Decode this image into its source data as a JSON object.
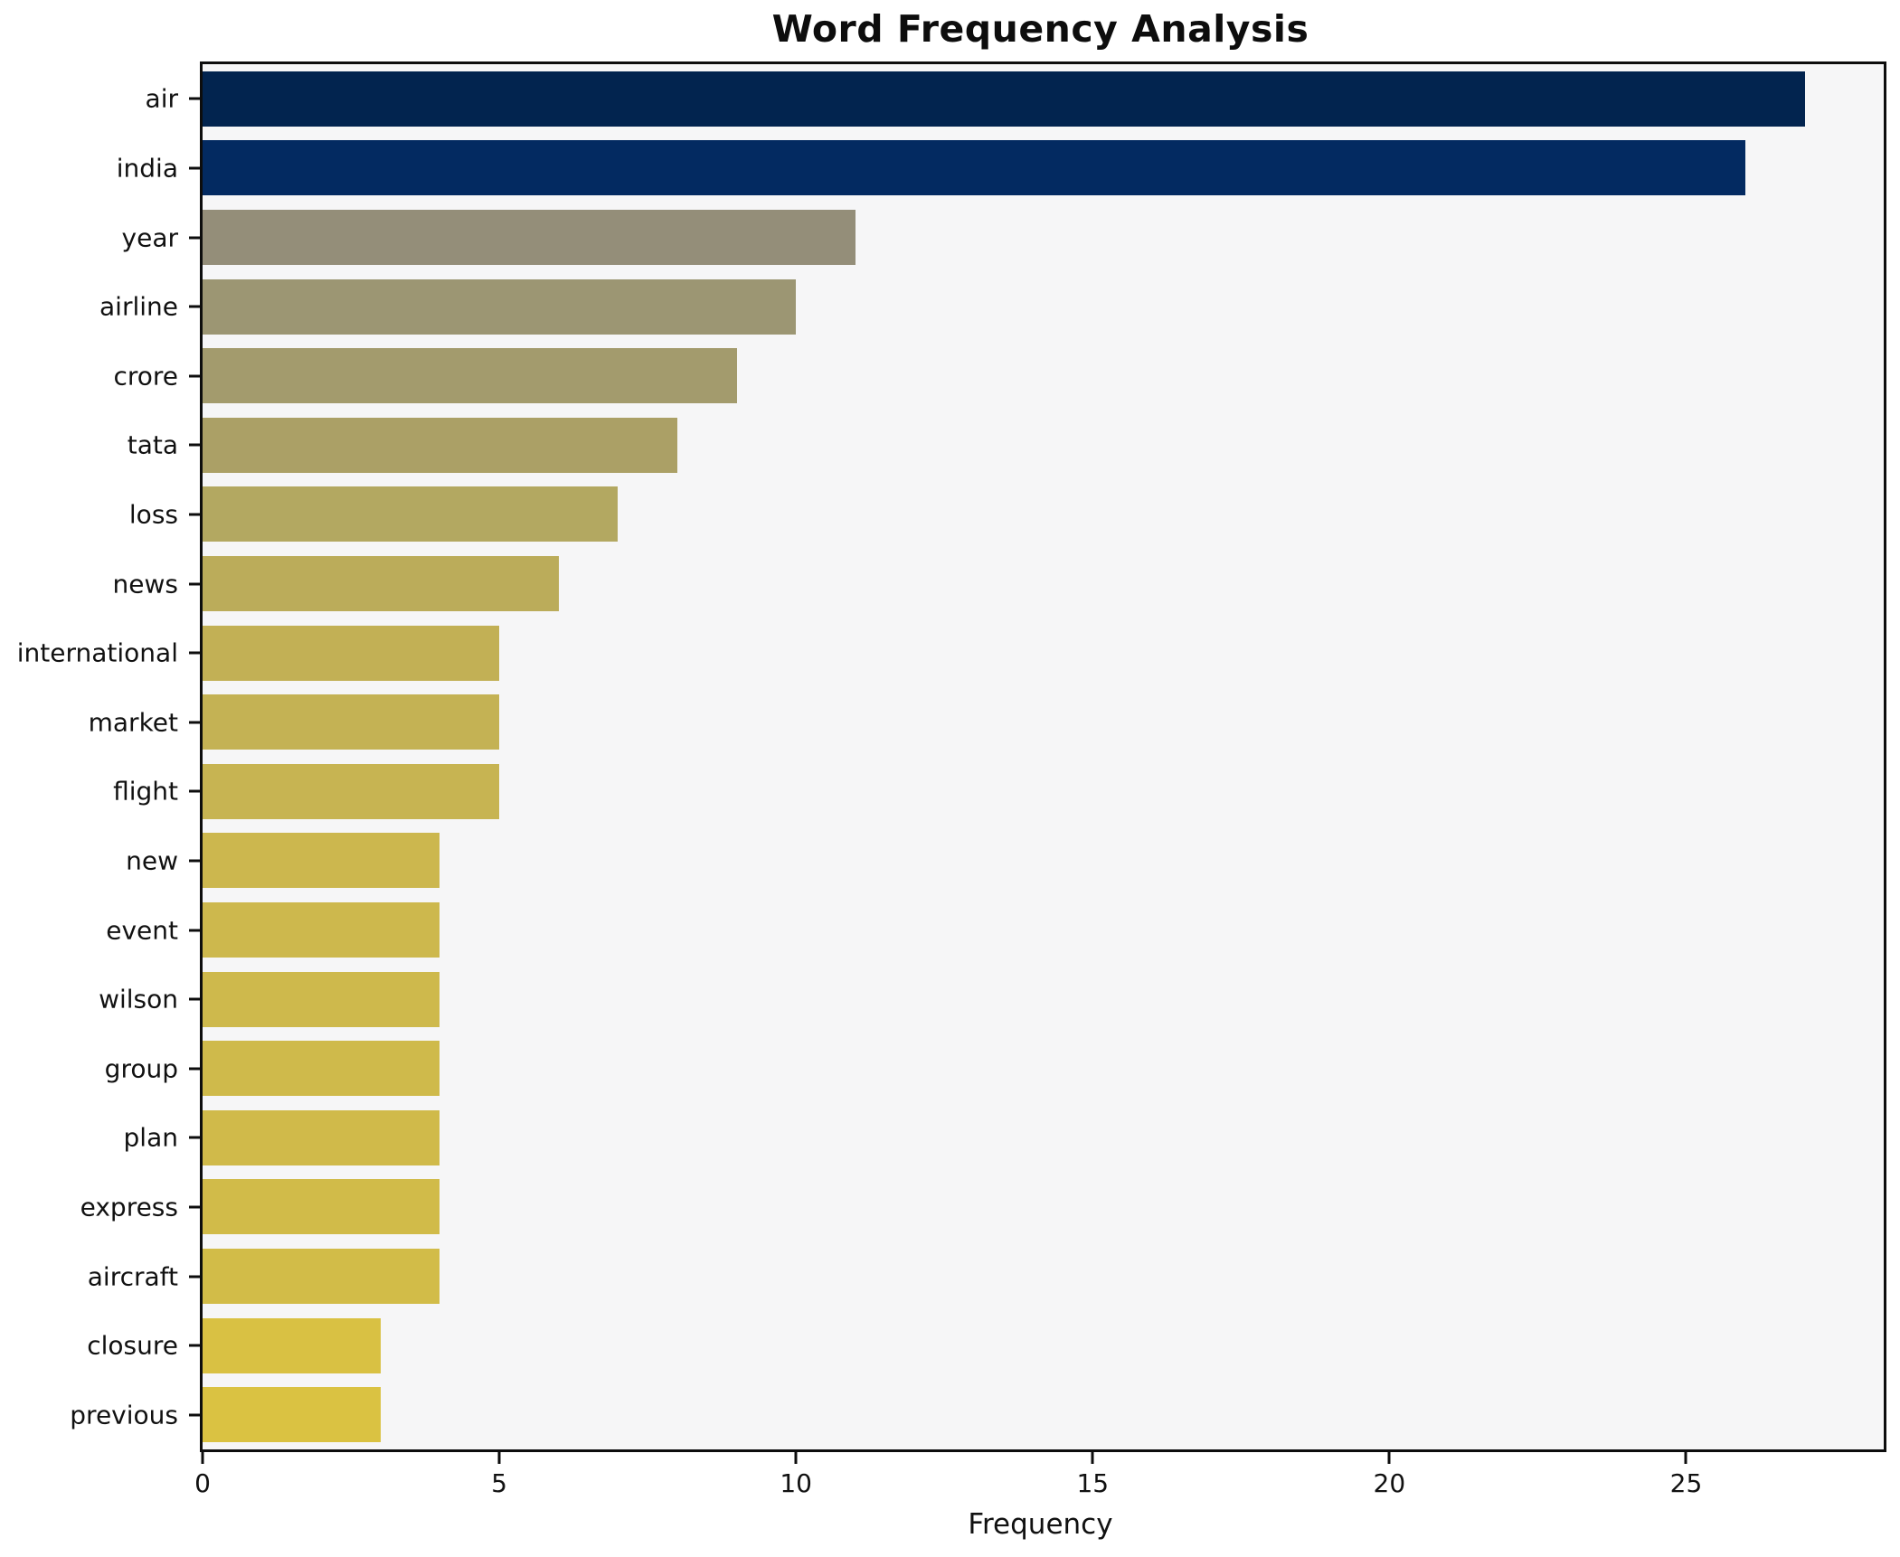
{
  "title": "Word Frequency Analysis",
  "chart_data": {
    "type": "bar",
    "orientation": "horizontal",
    "title": "Word Frequency Analysis",
    "xlabel": "Frequency",
    "ylabel": "",
    "categories": [
      "air",
      "india",
      "year",
      "airline",
      "crore",
      "tata",
      "loss",
      "news",
      "international",
      "market",
      "flight",
      "new",
      "event",
      "wilson",
      "group",
      "plan",
      "express",
      "aircraft",
      "closure",
      "previous"
    ],
    "values": [
      27,
      26,
      11,
      10,
      9,
      8,
      7,
      6,
      5,
      5,
      5,
      4,
      4,
      4,
      4,
      4,
      4,
      4,
      3,
      3
    ],
    "bar_colors": [
      "#02244f",
      "#032a61",
      "#948e79",
      "#9c9673",
      "#a39b6d",
      "#aba066",
      "#b3a861",
      "#bbac5a",
      "#c2b055",
      "#c4b254",
      "#c7b452",
      "#ccb74e",
      "#cdb84d",
      "#ceb94c",
      "#cfba4b",
      "#d0ba4a",
      "#d1bb49",
      "#d2bc48",
      "#d9c143",
      "#dac242"
    ],
    "xlim": [
      0,
      28.33
    ],
    "x_ticks": [
      0,
      5,
      10,
      15,
      20,
      25
    ],
    "grid": "off",
    "legend": "none",
    "plot_background": "#f6f6f7",
    "frame_color": "#0d0d0d"
  }
}
